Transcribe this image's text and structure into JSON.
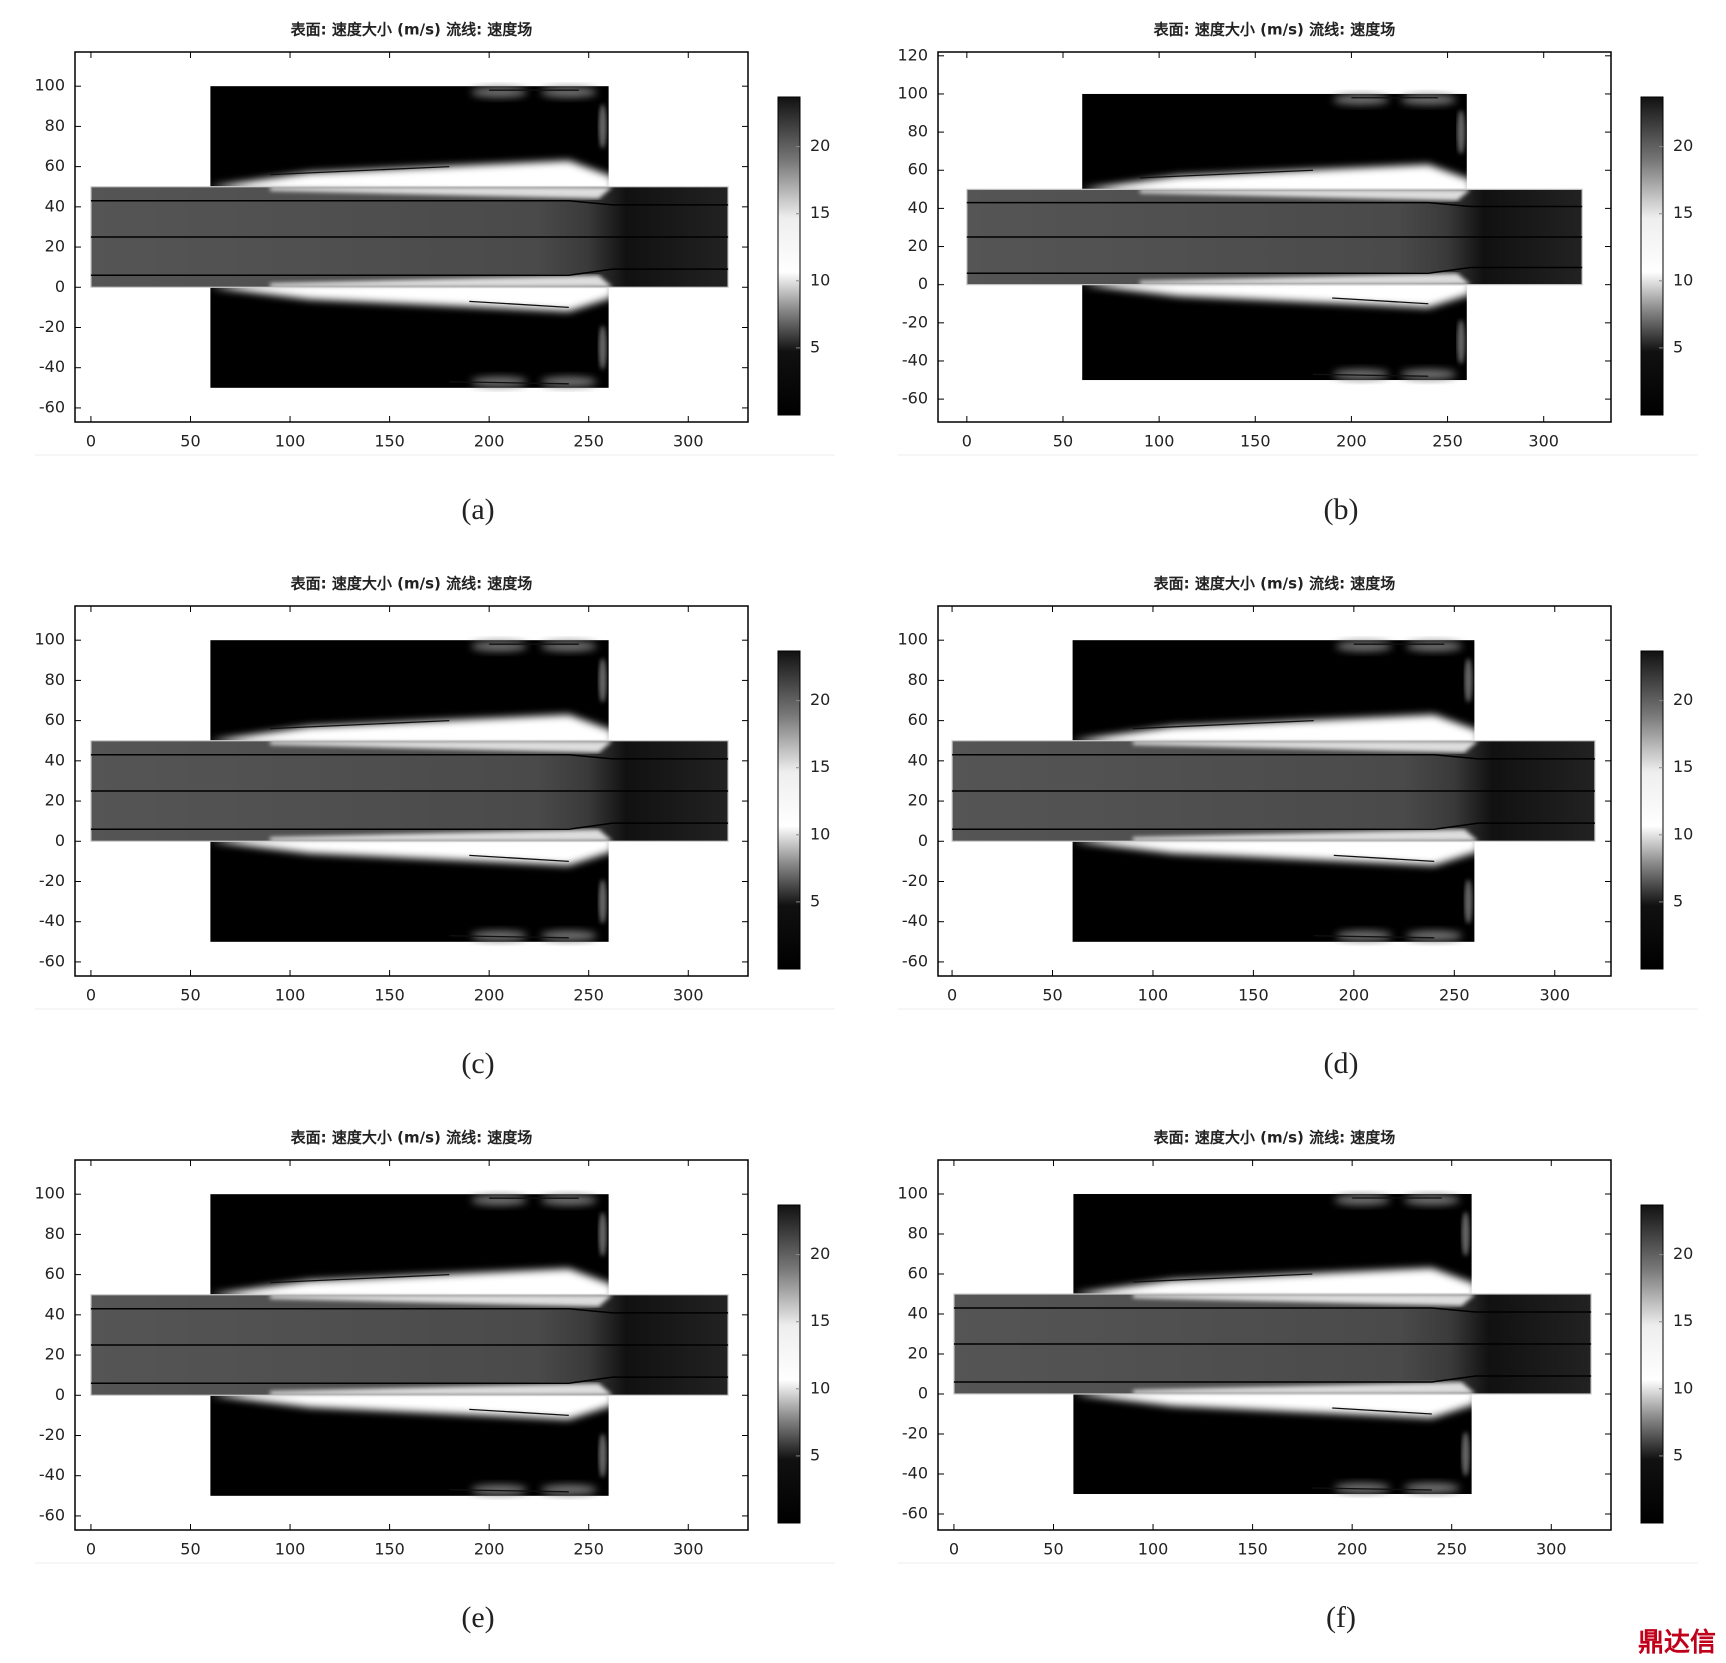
{
  "chart_data": [
    {
      "type": "surface",
      "title": "表面: 速度大小 (m/s) 流线: 速度场",
      "caption": "(a)",
      "xlim": [
        -8,
        330
      ],
      "ylim": [
        -67,
        117
      ],
      "xticks": [
        0,
        50,
        100,
        150,
        200,
        250,
        300
      ],
      "yticks": [
        -60,
        -40,
        -20,
        0,
        20,
        40,
        60,
        80,
        100
      ],
      "clim": [
        0,
        23.7
      ],
      "cticks": [
        5,
        10,
        15,
        20
      ]
    },
    {
      "type": "surface",
      "title": "表面: 速度大小 (m/s) 流线: 速度场",
      "caption": "(b)",
      "xlim": [
        -15,
        335
      ],
      "ylim": [
        -72,
        122
      ],
      "xticks": [
        0,
        50,
        100,
        150,
        200,
        250,
        300
      ],
      "yticks": [
        -60,
        -40,
        -20,
        0,
        20,
        40,
        60,
        80,
        100,
        120
      ],
      "clim": [
        0,
        23.7
      ],
      "cticks": [
        5,
        10,
        15,
        20
      ]
    },
    {
      "type": "surface",
      "title": "表面: 速度大小 (m/s) 流线: 速度场",
      "caption": "(c)",
      "xlim": [
        -8,
        330
      ],
      "ylim": [
        -67,
        117
      ],
      "xticks": [
        0,
        50,
        100,
        150,
        200,
        250,
        300
      ],
      "yticks": [
        -60,
        -40,
        -20,
        0,
        20,
        40,
        60,
        80,
        100
      ],
      "clim": [
        0,
        23.7
      ],
      "cticks": [
        5,
        10,
        15,
        20
      ]
    },
    {
      "type": "surface",
      "title": "表面: 速度大小 (m/s) 流线: 速度场",
      "caption": "(d)",
      "xlim": [
        -7,
        328
      ],
      "ylim": [
        -67,
        117
      ],
      "xticks": [
        0,
        50,
        100,
        150,
        200,
        250,
        300
      ],
      "yticks": [
        -60,
        -40,
        -20,
        0,
        20,
        40,
        60,
        80,
        100
      ],
      "clim": [
        0,
        23.7
      ],
      "cticks": [
        5,
        10,
        15,
        20
      ]
    },
    {
      "type": "surface",
      "title": "表面: 速度大小 (m/s) 流线: 速度场",
      "caption": "(e)",
      "xlim": [
        -8,
        330
      ],
      "ylim": [
        -67,
        117
      ],
      "xticks": [
        0,
        50,
        100,
        150,
        200,
        250,
        300
      ],
      "yticks": [
        -60,
        -40,
        -20,
        0,
        20,
        40,
        60,
        80,
        100
      ],
      "clim": [
        0,
        23.7
      ],
      "cticks": [
        5,
        10,
        15,
        20
      ]
    },
    {
      "type": "surface",
      "title": "表面: 速度大小 (m/s) 流线: 速度场",
      "caption": "(f)",
      "xlim": [
        -8,
        330
      ],
      "ylim": [
        -68,
        117
      ],
      "xticks": [
        0,
        50,
        100,
        150,
        200,
        250,
        300
      ],
      "yticks": [
        -60,
        -40,
        -20,
        0,
        20,
        40,
        60,
        80,
        100
      ],
      "clim": [
        0,
        23.7
      ],
      "cticks": [
        5,
        10,
        15,
        20
      ]
    }
  ],
  "watermark": "鼎达信"
}
